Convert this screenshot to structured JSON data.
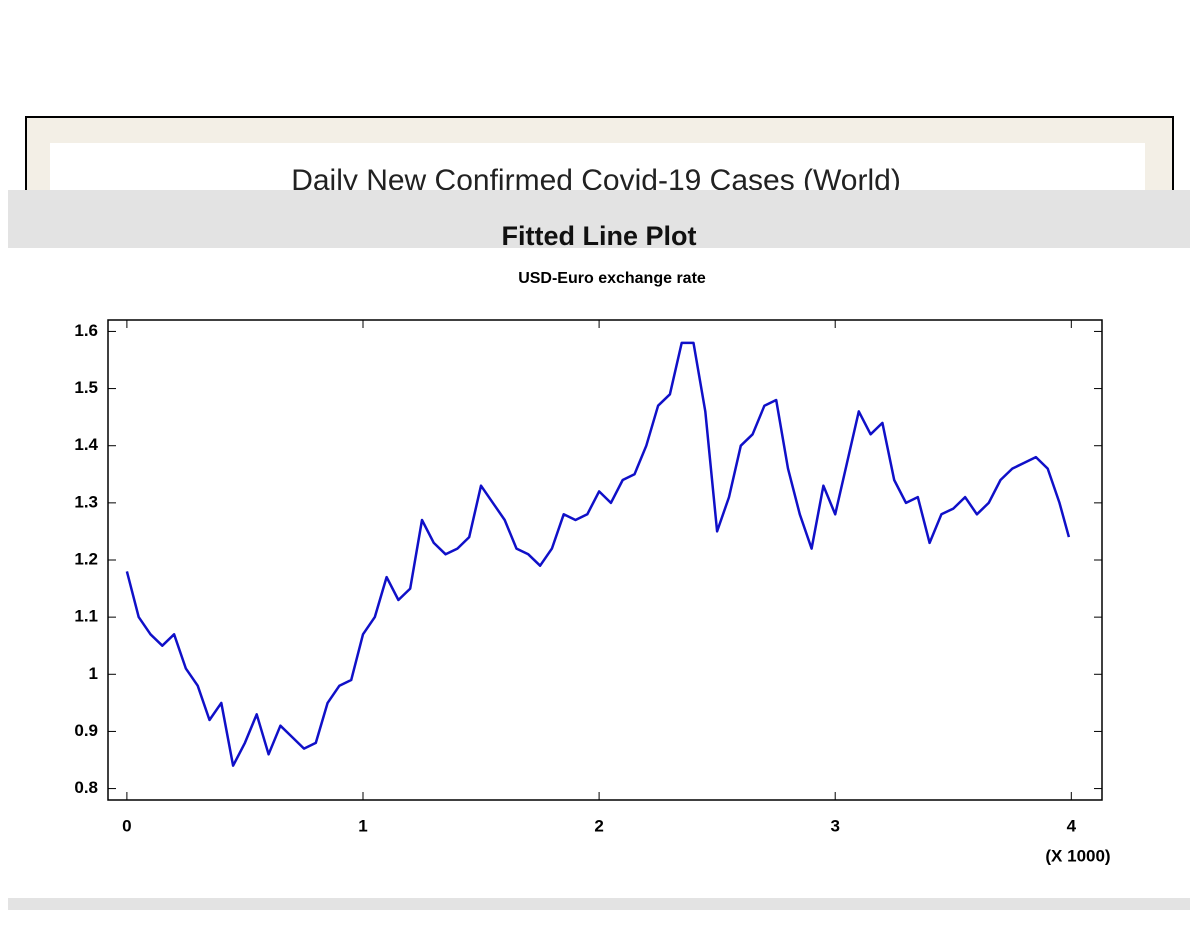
{
  "background": {
    "panel_title": "Daily New Confirmed Covid-19 Cases (World)",
    "section_title": "Fitted Line Plot"
  },
  "chart_data": {
    "type": "line",
    "title": "USD-Euro exchange rate",
    "x_unit_label": "(X 1000)",
    "x": [
      0,
      0.05,
      0.1,
      0.15,
      0.2,
      0.25,
      0.3,
      0.35,
      0.4,
      0.45,
      0.5,
      0.55,
      0.6,
      0.65,
      0.7,
      0.75,
      0.8,
      0.85,
      0.9,
      0.95,
      1,
      1.05,
      1.1,
      1.15,
      1.2,
      1.25,
      1.3,
      1.35,
      1.4,
      1.45,
      1.5,
      1.55,
      1.6,
      1.65,
      1.7,
      1.75,
      1.8,
      1.85,
      1.9,
      1.95,
      2,
      2.05,
      2.1,
      2.15,
      2.2,
      2.25,
      2.3,
      2.35,
      2.4,
      2.45,
      2.5,
      2.55,
      2.6,
      2.65,
      2.7,
      2.75,
      2.8,
      2.85,
      2.9,
      2.95,
      3,
      3.05,
      3.1,
      3.15,
      3.2,
      3.25,
      3.3,
      3.35,
      3.4,
      3.45,
      3.5,
      3.55,
      3.6,
      3.65,
      3.7,
      3.75,
      3.8,
      3.85,
      3.9,
      3.95,
      3.99
    ],
    "values": [
      1.18,
      1.1,
      1.07,
      1.05,
      1.07,
      1.01,
      0.98,
      0.92,
      0.95,
      0.84,
      0.88,
      0.93,
      0.86,
      0.91,
      0.89,
      0.87,
      0.88,
      0.95,
      0.98,
      0.99,
      1.07,
      1.1,
      1.17,
      1.13,
      1.15,
      1.27,
      1.23,
      1.21,
      1.22,
      1.24,
      1.33,
      1.3,
      1.27,
      1.22,
      1.21,
      1.19,
      1.22,
      1.28,
      1.27,
      1.28,
      1.32,
      1.3,
      1.34,
      1.35,
      1.4,
      1.47,
      1.49,
      1.58,
      1.58,
      1.46,
      1.25,
      1.31,
      1.4,
      1.42,
      1.47,
      1.48,
      1.36,
      1.28,
      1.22,
      1.33,
      1.28,
      1.37,
      1.46,
      1.42,
      1.44,
      1.34,
      1.3,
      1.31,
      1.23,
      1.28,
      1.29,
      1.31,
      1.28,
      1.3,
      1.34,
      1.36,
      1.37,
      1.38,
      1.36,
      1.3,
      1.24
    ],
    "color": "#1010c8",
    "xlim": [
      -0.08,
      4.13
    ],
    "ylim": [
      0.78,
      1.62
    ],
    "xticks": [
      0,
      1,
      2,
      3,
      4
    ],
    "yticks": [
      0.8,
      0.9,
      1,
      1.1,
      1.2,
      1.3,
      1.4,
      1.5,
      1.6
    ]
  }
}
